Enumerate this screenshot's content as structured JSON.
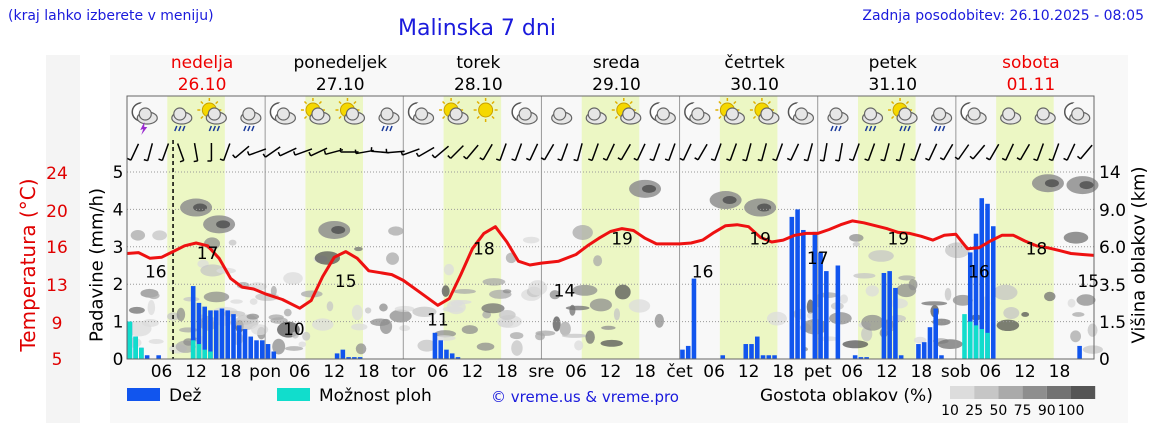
{
  "header": {
    "hint": "(kraj lahko izberete v meniju)",
    "title": "Malinska 7 dni",
    "updated": "Zadnja posodobitev: 26.10.2025 - 08:05"
  },
  "chart_data": {
    "type": "line",
    "days": [
      {
        "name": "nedelja",
        "date": "26.10",
        "weekend": true,
        "short": "",
        "hours": [
          "06",
          "12",
          "18"
        ]
      },
      {
        "name": "ponedeljek",
        "date": "27.10",
        "weekend": false,
        "short": "pon",
        "hours": [
          "06",
          "12",
          "18"
        ]
      },
      {
        "name": "torek",
        "date": "28.10",
        "weekend": false,
        "short": "tor",
        "hours": [
          "06",
          "12",
          "18"
        ]
      },
      {
        "name": "sreda",
        "date": "29.10",
        "weekend": false,
        "short": "sre",
        "hours": [
          "06",
          "12",
          "18"
        ]
      },
      {
        "name": "četrtek",
        "date": "30.10",
        "weekend": false,
        "short": "čet",
        "hours": [
          "06",
          "12",
          "18"
        ]
      },
      {
        "name": "petek",
        "date": "31.10",
        "weekend": false,
        "short": "pet",
        "hours": [
          "06",
          "12",
          "18"
        ]
      },
      {
        "name": "sobota",
        "date": "01.11",
        "weekend": true,
        "short": "sob",
        "hours": [
          "06",
          "12",
          "18"
        ]
      }
    ],
    "start_hour": 0,
    "current_hour": 8,
    "axes": {
      "temperature": {
        "label": "Temperatura (°C)",
        "ticks": [
          5,
          9,
          13,
          16,
          20,
          24
        ],
        "range": [
          5,
          24.5
        ]
      },
      "precipitation": {
        "label": "Padavine (mm/h)",
        "ticks": [
          0,
          1,
          2,
          3,
          4,
          5
        ],
        "range": [
          0,
          5
        ]
      },
      "cloud_height": {
        "label": "Višina oblakov (km)",
        "ticks": [
          "0",
          "1.5",
          "3.5",
          "6.0",
          "9.0",
          "14"
        ]
      }
    },
    "temperature": {
      "name": "Temperatura",
      "color": "#ee1111",
      "x": [
        0,
        2,
        4,
        6,
        8,
        10,
        12,
        14,
        16,
        18,
        20,
        22,
        24,
        27,
        30,
        32,
        34,
        36,
        38,
        40,
        42,
        44,
        46,
        48,
        51,
        54,
        56,
        58,
        60,
        62,
        64,
        66,
        68,
        70,
        72,
        75,
        78,
        80,
        82,
        84,
        86,
        88,
        90,
        92,
        94,
        96,
        98,
        100,
        102,
        104,
        106,
        108,
        110,
        112,
        114,
        116,
        118,
        120,
        122,
        124,
        126,
        128,
        130,
        132,
        134,
        136,
        138,
        140,
        142,
        144,
        146,
        148,
        150,
        152,
        154,
        156,
        158,
        160,
        162,
        164,
        166,
        168
      ],
      "values": [
        16.0,
        16.1,
        15.5,
        15.6,
        16.2,
        16.8,
        17.1,
        16.8,
        15.5,
        13.4,
        12.5,
        12.3,
        11.8,
        11.2,
        10.3,
        11.1,
        13.6,
        15.6,
        16.2,
        15.5,
        14.2,
        14.0,
        13.8,
        13.2,
        11.9,
        10.6,
        11.3,
        13.8,
        16.5,
        18.1,
        18.8,
        17.2,
        15.2,
        14.8,
        15.0,
        15.2,
        15.9,
        16.8,
        17.6,
        18.3,
        18.6,
        18.4,
        17.6,
        17.0,
        17.0,
        17.0,
        17.1,
        17.4,
        18.2,
        18.9,
        19.0,
        18.8,
        17.7,
        17.2,
        17.4,
        17.9,
        18.1,
        18.1,
        18.5,
        19.0,
        19.4,
        19.2,
        18.9,
        18.6,
        18.2,
        18.1,
        17.8,
        17.4,
        17.9,
        18.0,
        16.5,
        16.6,
        17.3,
        17.9,
        17.9,
        17.3,
        16.8,
        16.6,
        16.3,
        16.0,
        15.9,
        15.8
      ]
    },
    "temperature_labels": [
      {
        "x": 5,
        "value": 16
      },
      {
        "x": 14,
        "value": 17
      },
      {
        "x": 29,
        "value": 10
      },
      {
        "x": 38,
        "value": 15
      },
      {
        "x": 54,
        "value": 11
      },
      {
        "x": 62,
        "value": 18
      },
      {
        "x": 76,
        "value": 14
      },
      {
        "x": 86,
        "value": 19
      },
      {
        "x": 100,
        "value": 16
      },
      {
        "x": 110,
        "value": 19
      },
      {
        "x": 120,
        "value": 17
      },
      {
        "x": 134,
        "value": 19
      },
      {
        "x": 148,
        "value": 16
      },
      {
        "x": 158,
        "value": 18
      },
      {
        "x": 167,
        "value": 15
      }
    ],
    "precipitation": {
      "name": "Dež",
      "color": "#1155ee",
      "x": [
        0,
        1,
        2,
        3,
        4,
        5,
        6,
        8,
        11,
        12,
        13,
        14,
        15,
        16,
        17,
        18,
        19,
        20,
        21,
        22,
        23,
        24,
        25,
        35,
        36,
        37,
        38,
        39,
        40,
        53,
        54,
        55,
        56,
        57,
        96,
        97,
        98,
        103,
        107,
        108,
        109,
        110,
        111,
        112,
        115,
        116,
        117,
        119,
        120,
        121,
        123,
        126,
        127,
        128,
        131,
        132,
        133,
        134,
        136,
        137,
        138,
        139,
        140,
        141,
        143,
        144,
        145,
        146,
        147,
        148,
        149,
        150,
        165
      ],
      "values": [
        1.0,
        0.6,
        0.3,
        0.1,
        0.0,
        0.1,
        0.0,
        0.0,
        1.95,
        1.5,
        1.4,
        1.3,
        1.3,
        1.35,
        1.3,
        1.2,
        0.9,
        0.8,
        0.6,
        0.5,
        0.5,
        0.4,
        0.2,
        0.0,
        0.15,
        0.25,
        0.05,
        0.05,
        0.05,
        0.7,
        0.5,
        0.25,
        0.15,
        0.05,
        0.25,
        0.35,
        2.15,
        0.1,
        0.4,
        0.4,
        0.6,
        0.1,
        0.1,
        0.1,
        3.8,
        4.0,
        3.45,
        3.4,
        2.85,
        2.35,
        2.5,
        0.1,
        0.05,
        0.05,
        2.3,
        2.35,
        1.9,
        0.1,
        0.0,
        0.4,
        0.45,
        0.85,
        1.35,
        0.1,
        0.0,
        0.0,
        0.0,
        2.85,
        3.35,
        4.3,
        4.15,
        3.55,
        0.35
      ],
      "unit": "mm/h"
    },
    "possible_showers": {
      "name": "Možnost ploh",
      "color": "#11ddcc",
      "x": [
        0,
        1,
        2,
        11,
        12,
        13,
        14,
        145,
        146,
        147,
        148,
        149
      ],
      "values": [
        1.0,
        0.6,
        0.3,
        0.5,
        0.4,
        0.25,
        0.2,
        1.2,
        1.0,
        0.9,
        0.8,
        0.7
      ],
      "unit": "mm/h"
    },
    "wind_directions_deg": [
      205,
      195,
      200,
      160,
      170,
      180,
      200,
      230,
      250,
      235,
      245,
      250,
      245,
      255,
      270,
      260,
      275,
      265,
      250,
      240,
      230,
      225,
      220,
      210,
      200,
      200,
      205,
      210,
      200,
      195,
      200,
      205,
      210,
      205,
      200,
      200,
      205,
      210,
      200,
      200,
      195,
      195,
      200,
      205,
      195,
      190,
      190,
      200,
      200,
      195,
      195,
      200,
      205,
      210,
      215,
      220,
      210,
      205,
      210,
      200,
      200,
      205,
      220
    ],
    "weather_icons": [
      "night-thunder",
      "cloud-rain",
      "sun-cloud-rain",
      "cloud-rain",
      "night-cloud",
      "sun-cloud",
      "sun-cloud",
      "cloud-rain",
      "night-cloud",
      "sun-cloud",
      "sun",
      "night-cloud",
      "cloud",
      "cloud",
      "sun-cloud",
      "night-cloud",
      "night-cloud",
      "sun-cloud",
      "sun-cloud",
      "night-cloud",
      "cloud-rain",
      "cloud-rain",
      "sun-cloud-rain",
      "cloud-rain",
      "night-cloud",
      "cloud",
      "cloud",
      "night-cloud"
    ],
    "cloud_density_legend": {
      "label": "Gostota oblakov (%)",
      "steps": [
        {
          "label": "10",
          "color": "#dcdcdc"
        },
        {
          "label": "25",
          "color": "#c6c6c6"
        },
        {
          "label": "50",
          "color": "#aaaaaa"
        },
        {
          "label": "75",
          "color": "#8e8e8e"
        },
        {
          "label": "90",
          "color": "#727272"
        },
        {
          "label": "100",
          "color": "#555555"
        }
      ]
    },
    "legend": [
      {
        "label": "Dež",
        "color": "#1155ee"
      },
      {
        "label": "Možnost ploh",
        "color": "#11ddcc"
      }
    ],
    "credit": "© vreme.us & vreme.pro",
    "grid": true,
    "colors": {
      "weekday_text": "#000000",
      "weekend_text": "#ee0000",
      "daylight_band": "#ecf7c4",
      "link_text": "#1a1adc"
    }
  }
}
